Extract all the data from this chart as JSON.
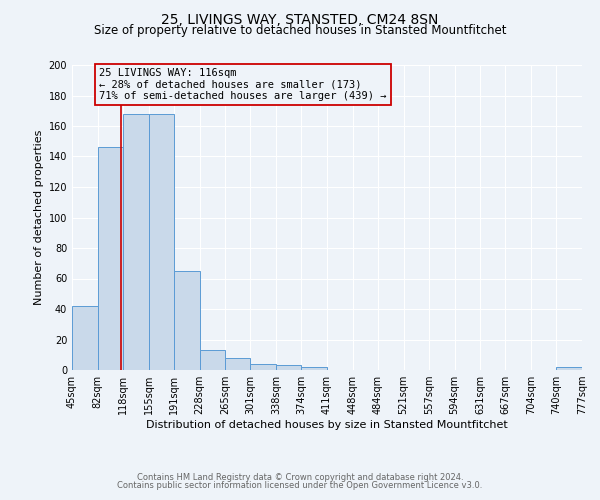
{
  "title": "25, LIVINGS WAY, STANSTED, CM24 8SN",
  "subtitle": "Size of property relative to detached houses in Stansted Mountfitchet",
  "xlabel": "Distribution of detached houses by size in Stansted Mountfitchet",
  "ylabel": "Number of detached properties",
  "bin_edges": [
    45,
    82,
    118,
    155,
    191,
    228,
    265,
    301,
    338,
    374,
    411,
    448,
    484,
    521,
    557,
    594,
    631,
    667,
    704,
    740,
    777
  ],
  "bin_counts": [
    42,
    146,
    168,
    168,
    65,
    13,
    8,
    4,
    3,
    2,
    0,
    0,
    0,
    0,
    0,
    0,
    0,
    0,
    0,
    2
  ],
  "bar_color": "#c9d9ea",
  "bar_edge_color": "#5b9bd5",
  "property_size": 116,
  "red_line_color": "#cc0000",
  "annotation_box_edge": "#cc0000",
  "annotation_text_line1": "25 LIVINGS WAY: 116sqm",
  "annotation_text_line2": "← 28% of detached houses are smaller (173)",
  "annotation_text_line3": "71% of semi-detached houses are larger (439) →",
  "ylim": [
    0,
    200
  ],
  "yticks": [
    0,
    20,
    40,
    60,
    80,
    100,
    120,
    140,
    160,
    180,
    200
  ],
  "tick_labels": [
    "45sqm",
    "82sqm",
    "118sqm",
    "155sqm",
    "191sqm",
    "228sqm",
    "265sqm",
    "301sqm",
    "338sqm",
    "374sqm",
    "411sqm",
    "448sqm",
    "484sqm",
    "521sqm",
    "557sqm",
    "594sqm",
    "631sqm",
    "667sqm",
    "704sqm",
    "740sqm",
    "777sqm"
  ],
  "footer_line1": "Contains HM Land Registry data © Crown copyright and database right 2024.",
  "footer_line2": "Contains public sector information licensed under the Open Government Licence v3.0.",
  "background_color": "#eef3f9",
  "grid_color": "#ffffff",
  "title_fontsize": 10,
  "subtitle_fontsize": 8.5,
  "axis_label_fontsize": 8,
  "tick_fontsize": 7,
  "annotation_fontsize": 7.5,
  "footer_fontsize": 6
}
